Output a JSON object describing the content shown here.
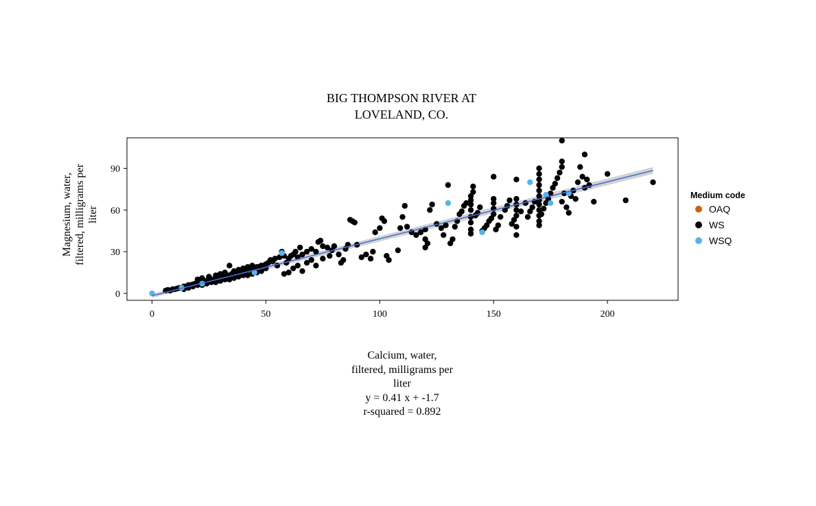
{
  "chart_data": {
    "type": "scatter",
    "title_lines": [
      "BIG THOMPSON RIVER AT",
      "LOVELAND, CO."
    ],
    "xlabel_lines": [
      "Calcium, water,",
      "filtered, milligrams per",
      "liter"
    ],
    "ylabel_lines": [
      "Magnesium, water,",
      "filtered, milligrams per",
      "liter"
    ],
    "equation": "y = 0.41 x + -1.7",
    "r_squared": "r-squared = 0.892",
    "xlim": [
      -11,
      231
    ],
    "ylim": [
      -5,
      112
    ],
    "x_ticks": [
      0,
      50,
      100,
      150,
      200
    ],
    "y_ticks": [
      0,
      30,
      60,
      90
    ],
    "x_tick_labels": [
      "0",
      "50",
      "100",
      "150",
      "200"
    ],
    "y_tick_labels": [
      "0",
      "30",
      "60",
      "90"
    ],
    "grid": false,
    "legend": {
      "title": "Medium code",
      "position": "right",
      "entries": [
        {
          "name": "OAQ",
          "color": "#D55E00"
        },
        {
          "name": "WS",
          "color": "#000000"
        },
        {
          "name": "WSQ",
          "color": "#56B4E9"
        }
      ]
    },
    "fit": {
      "slope": 0.41,
      "intercept": -1.7,
      "x_range": [
        0,
        220
      ],
      "line_color": "#4a6fd6",
      "band_color": "#c8c8c8"
    },
    "series": [
      {
        "name": "WS",
        "color": "#000000",
        "points": [
          [
            6,
            2
          ],
          [
            7,
            2.5
          ],
          [
            8,
            2
          ],
          [
            9,
            3
          ],
          [
            10,
            3
          ],
          [
            11,
            3.5
          ],
          [
            12,
            4
          ],
          [
            13,
            4
          ],
          [
            14,
            5
          ],
          [
            15,
            5
          ],
          [
            16,
            6
          ],
          [
            17,
            6
          ],
          [
            18,
            6.5
          ],
          [
            19,
            7
          ],
          [
            20,
            7
          ],
          [
            21,
            8
          ],
          [
            22,
            8
          ],
          [
            23,
            9
          ],
          [
            24,
            9
          ],
          [
            25,
            10
          ],
          [
            26,
            10
          ],
          [
            27,
            10
          ],
          [
            28,
            11
          ],
          [
            29,
            11
          ],
          [
            30,
            12
          ],
          [
            31,
            12
          ],
          [
            32,
            12
          ],
          [
            33,
            13
          ],
          [
            34,
            13
          ],
          [
            35,
            14
          ],
          [
            36,
            14
          ],
          [
            37,
            14
          ],
          [
            38,
            15
          ],
          [
            39,
            15
          ],
          [
            40,
            16
          ],
          [
            41,
            16
          ],
          [
            42,
            17
          ],
          [
            43,
            17
          ],
          [
            44,
            18
          ],
          [
            45,
            18
          ],
          [
            46,
            19
          ],
          [
            47,
            19
          ],
          [
            48,
            20
          ],
          [
            49,
            20
          ],
          [
            50,
            21
          ],
          [
            14,
            3
          ],
          [
            16,
            4
          ],
          [
            18,
            5
          ],
          [
            20,
            6
          ],
          [
            22,
            6
          ],
          [
            24,
            7
          ],
          [
            26,
            8
          ],
          [
            28,
            8
          ],
          [
            30,
            9
          ],
          [
            32,
            10
          ],
          [
            34,
            10
          ],
          [
            36,
            11
          ],
          [
            38,
            12
          ],
          [
            40,
            13
          ],
          [
            42,
            13
          ],
          [
            44,
            14
          ],
          [
            46,
            15
          ],
          [
            48,
            16
          ],
          [
            20,
            10
          ],
          [
            22,
            11
          ],
          [
            25,
            12
          ],
          [
            28,
            13
          ],
          [
            30,
            14
          ],
          [
            32,
            15
          ],
          [
            34,
            20
          ],
          [
            36,
            16
          ],
          [
            38,
            17
          ],
          [
            40,
            18
          ],
          [
            42,
            19
          ],
          [
            44,
            20
          ],
          [
            50,
            18
          ],
          [
            51,
            22
          ],
          [
            52,
            24
          ],
          [
            53,
            23
          ],
          [
            54,
            25
          ],
          [
            55,
            20
          ],
          [
            56,
            26
          ],
          [
            57,
            30
          ],
          [
            58,
            27
          ],
          [
            59,
            22
          ],
          [
            60,
            25
          ],
          [
            61,
            27
          ],
          [
            62,
            28
          ],
          [
            63,
            30
          ],
          [
            64,
            26
          ],
          [
            65,
            33
          ],
          [
            66,
            28
          ],
          [
            68,
            30
          ],
          [
            70,
            32
          ],
          [
            72,
            30
          ],
          [
            73,
            37
          ],
          [
            74,
            38
          ],
          [
            75,
            34
          ],
          [
            77,
            33
          ],
          [
            79,
            31
          ],
          [
            80,
            34
          ],
          [
            82,
            28
          ],
          [
            83,
            22
          ],
          [
            84,
            24
          ],
          [
            85,
            32
          ],
          [
            86,
            35
          ],
          [
            87,
            53
          ],
          [
            88,
            52
          ],
          [
            89,
            51
          ],
          [
            90,
            35
          ],
          [
            92,
            26
          ],
          [
            94,
            28
          ],
          [
            96,
            25
          ],
          [
            97,
            30
          ],
          [
            98,
            44
          ],
          [
            100,
            47
          ],
          [
            101,
            54
          ],
          [
            102,
            52
          ],
          [
            103,
            27
          ],
          [
            104,
            24
          ],
          [
            58,
            14
          ],
          [
            60,
            15
          ],
          [
            62,
            18
          ],
          [
            64,
            20
          ],
          [
            66,
            16
          ],
          [
            68,
            22
          ],
          [
            70,
            24
          ],
          [
            72,
            20
          ],
          [
            75,
            25
          ],
          [
            78,
            27
          ],
          [
            108,
            31
          ],
          [
            109,
            47
          ],
          [
            110,
            55
          ],
          [
            111,
            63
          ],
          [
            112,
            48
          ],
          [
            114,
            44
          ],
          [
            116,
            42
          ],
          [
            118,
            44
          ],
          [
            120,
            46
          ],
          [
            120,
            39
          ],
          [
            120,
            33
          ],
          [
            121,
            36
          ],
          [
            122,
            60
          ],
          [
            123,
            64
          ],
          [
            125,
            50
          ],
          [
            127,
            47
          ],
          [
            128,
            42
          ],
          [
            129,
            49
          ],
          [
            130,
            78
          ],
          [
            131,
            36
          ],
          [
            132,
            39
          ],
          [
            133,
            48
          ],
          [
            134,
            52
          ],
          [
            135,
            57
          ],
          [
            136,
            59
          ],
          [
            137,
            63
          ],
          [
            138,
            65
          ],
          [
            140,
            43
          ],
          [
            140,
            46
          ],
          [
            140,
            51
          ],
          [
            140,
            55
          ],
          [
            140,
            60
          ],
          [
            140,
            64
          ],
          [
            140,
            67
          ],
          [
            140,
            70
          ],
          [
            141,
            73
          ],
          [
            141,
            77
          ],
          [
            142,
            56
          ],
          [
            143,
            58
          ],
          [
            144,
            62
          ],
          [
            145,
            45
          ],
          [
            146,
            47
          ],
          [
            147,
            49
          ],
          [
            148,
            52
          ],
          [
            149,
            54
          ],
          [
            150,
            57
          ],
          [
            150,
            61
          ],
          [
            150,
            65
          ],
          [
            150,
            68
          ],
          [
            150,
            84
          ],
          [
            151,
            46
          ],
          [
            152,
            49
          ],
          [
            153,
            55
          ],
          [
            155,
            60
          ],
          [
            156,
            63
          ],
          [
            157,
            67
          ],
          [
            158,
            50
          ],
          [
            159,
            53
          ],
          [
            160,
            48
          ],
          [
            160,
            56
          ],
          [
            160,
            60
          ],
          [
            160,
            64
          ],
          [
            160,
            68
          ],
          [
            160,
            42
          ],
          [
            160,
            82
          ],
          [
            162,
            59
          ],
          [
            164,
            65
          ],
          [
            165,
            55
          ],
          [
            166,
            59
          ],
          [
            167,
            62
          ],
          [
            168,
            66
          ],
          [
            170,
            49
          ],
          [
            170,
            52
          ],
          [
            170,
            56
          ],
          [
            170,
            60
          ],
          [
            170,
            64
          ],
          [
            170,
            67
          ],
          [
            170,
            70
          ],
          [
            170,
            74
          ],
          [
            170,
            78
          ],
          [
            170,
            82
          ],
          [
            170,
            86
          ],
          [
            170,
            90
          ],
          [
            171,
            57
          ],
          [
            172,
            61
          ],
          [
            173,
            65
          ],
          [
            174,
            68
          ],
          [
            175,
            72
          ],
          [
            176,
            76
          ],
          [
            177,
            79
          ],
          [
            178,
            83
          ],
          [
            179,
            87
          ],
          [
            180,
            91
          ],
          [
            180,
            95
          ],
          [
            180,
            110
          ],
          [
            180,
            66
          ],
          [
            181,
            72
          ],
          [
            182,
            62
          ],
          [
            183,
            58
          ],
          [
            184,
            70
          ],
          [
            185,
            74
          ],
          [
            186,
            68
          ],
          [
            187,
            80
          ],
          [
            188,
            91
          ],
          [
            189,
            84
          ],
          [
            190,
            100
          ],
          [
            190,
            76
          ],
          [
            191,
            82
          ],
          [
            192,
            78
          ],
          [
            194,
            66
          ],
          [
            200,
            86
          ],
          [
            208,
            67
          ],
          [
            220,
            80
          ]
        ]
      },
      {
        "name": "WSQ",
        "color": "#56B4E9",
        "points": [
          [
            0,
            0
          ],
          [
            13,
            4
          ],
          [
            22,
            7
          ],
          [
            45,
            15
          ],
          [
            57,
            29
          ],
          [
            130,
            65
          ],
          [
            145,
            44
          ],
          [
            166,
            80
          ],
          [
            173,
            71
          ],
          [
            175,
            65
          ],
          [
            183,
            72
          ]
        ]
      }
    ]
  }
}
